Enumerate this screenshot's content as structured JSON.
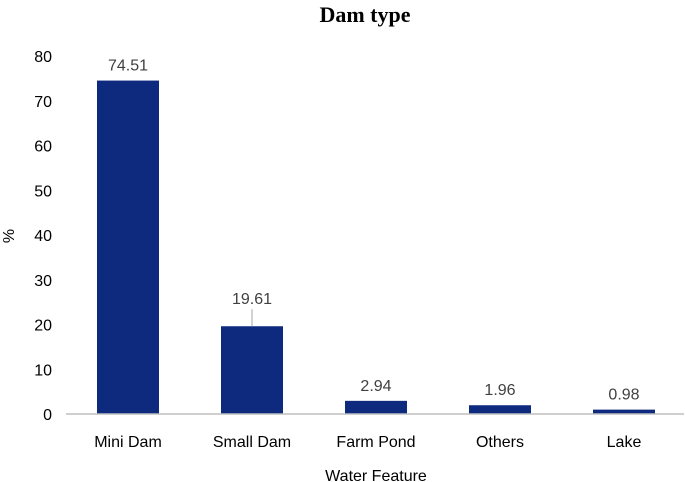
{
  "chart_data": {
    "type": "bar",
    "title": "Dam type",
    "xlabel": "Water Feature",
    "ylabel": "%",
    "categories": [
      "Mini Dam",
      "Small Dam",
      "Farm Pond",
      "Others",
      "Lake"
    ],
    "values": [
      74.51,
      19.61,
      2.94,
      1.96,
      0.98
    ],
    "data_labels": [
      "74.51",
      "19.61",
      "2.94",
      "1.96",
      "0.98"
    ],
    "ylim": [
      0,
      80
    ],
    "yticks": [
      "0",
      "10",
      "20",
      "30",
      "40",
      "50",
      "60",
      "70",
      "80"
    ],
    "grid": false,
    "legend": "none",
    "bar_color": "#0D2A7E"
  }
}
